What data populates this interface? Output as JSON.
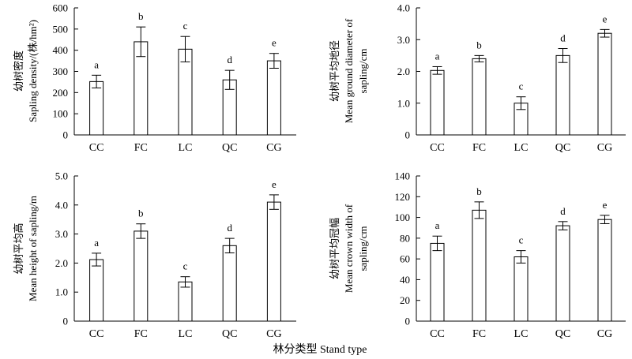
{
  "figure": {
    "xlabel": "林分类型 Stand type"
  },
  "chart_data": [
    {
      "type": "bar",
      "categories": [
        "CC",
        "FC",
        "LC",
        "QC",
        "CG"
      ],
      "values": [
        252,
        440,
        405,
        260,
        350
      ],
      "errors": [
        30,
        70,
        60,
        45,
        35
      ],
      "labels": [
        "a",
        "b",
        "c",
        "d",
        "e"
      ],
      "ylim": [
        0,
        600
      ],
      "yticks": [
        "0",
        "100",
        "200",
        "300",
        "400",
        "500",
        "600"
      ],
      "ylabel_lines": [
        "幼树密度",
        "Sapling density/(株/hm²)"
      ],
      "grid": false
    },
    {
      "type": "bar",
      "categories": [
        "CC",
        "FC",
        "LC",
        "QC",
        "CG"
      ],
      "values": [
        2.03,
        2.4,
        1.0,
        2.5,
        3.2
      ],
      "errors": [
        0.12,
        0.1,
        0.2,
        0.22,
        0.12
      ],
      "labels": [
        "a",
        "b",
        "c",
        "d",
        "e"
      ],
      "ylim": [
        0,
        4
      ],
      "yticks": [
        "0",
        "1.0",
        "2.0",
        "3.0",
        "4.0"
      ],
      "ylabel_lines": [
        "幼树平均地径",
        "Mean ground diameter of",
        "sapling/cm"
      ],
      "grid": false
    },
    {
      "type": "bar",
      "categories": [
        "CC",
        "FC",
        "LC",
        "QC",
        "CG"
      ],
      "values": [
        2.12,
        3.1,
        1.35,
        2.6,
        4.1
      ],
      "errors": [
        0.22,
        0.25,
        0.18,
        0.25,
        0.25
      ],
      "labels": [
        "a",
        "b",
        "c",
        "d",
        "e"
      ],
      "ylim": [
        0,
        5
      ],
      "yticks": [
        "0",
        "1.0",
        "2.0",
        "3.0",
        "4.0",
        "5.0"
      ],
      "ylabel_lines": [
        "幼树平均高",
        "Mean height of sapling/m"
      ],
      "grid": false
    },
    {
      "type": "bar",
      "categories": [
        "CC",
        "FC",
        "LC",
        "QC",
        "CG"
      ],
      "values": [
        75,
        107,
        62,
        92,
        98
      ],
      "errors": [
        7,
        8,
        6,
        4,
        4
      ],
      "labels": [
        "a",
        "b",
        "c",
        "d",
        "e"
      ],
      "ylim": [
        0,
        140
      ],
      "yticks": [
        "0",
        "20",
        "40",
        "60",
        "80",
        "100",
        "120",
        "140"
      ],
      "ylabel_lines": [
        "幼树平均冠幅",
        "Mean crown width of",
        "sapling/cm"
      ],
      "grid": false
    }
  ]
}
